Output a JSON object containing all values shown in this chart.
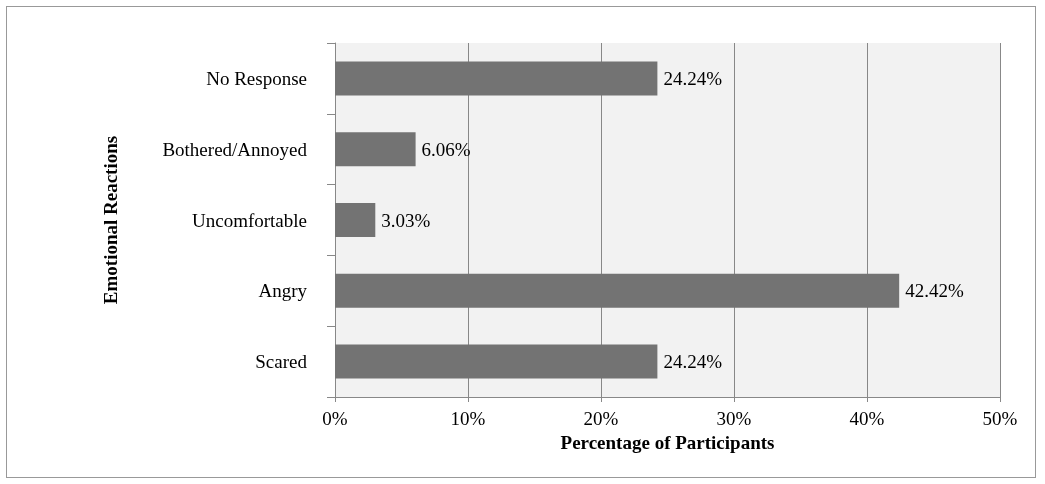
{
  "chart_data": {
    "type": "bar",
    "orientation": "horizontal",
    "xlabel": "Percentage of Participants",
    "ylabel": "Emotional Reactions",
    "categories": [
      "No Response",
      "Bothered/Annoyed",
      "Uncomfortable",
      "Angry",
      "Scared"
    ],
    "values": [
      24.24,
      6.06,
      3.03,
      42.42,
      24.24
    ],
    "value_labels": [
      "24.24%",
      "6.06%",
      "3.03%",
      "42.42%",
      "24.24%"
    ],
    "color": "#737373",
    "xlim": [
      0,
      50
    ],
    "xticks": [
      {
        "value": 0,
        "label": "0%"
      },
      {
        "value": 10,
        "label": "10%"
      },
      {
        "value": 20,
        "label": "20%"
      },
      {
        "value": 30,
        "label": "30%"
      },
      {
        "value": 40,
        "label": "40%"
      },
      {
        "value": 50,
        "label": "50%"
      }
    ],
    "grid": "x"
  }
}
